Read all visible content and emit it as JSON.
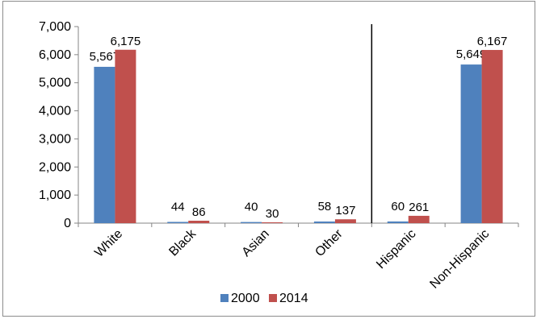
{
  "chart_data": {
    "type": "bar",
    "title": "",
    "xlabel": "",
    "ylabel": "",
    "categories": [
      "White",
      "Black",
      "Asian",
      "Other",
      "Hispanic",
      "Non-Hispanic"
    ],
    "series": [
      {
        "name": "2000",
        "values": [
          5567,
          44,
          40,
          58,
          60,
          5649
        ],
        "color": "#4f81bd"
      },
      {
        "name": "2014",
        "values": [
          6175,
          86,
          30,
          137,
          261,
          6167
        ],
        "color": "#c0504d"
      }
    ],
    "data_labels": [
      [
        "5,567",
        "44",
        "40",
        "58",
        "60",
        "5,649"
      ],
      [
        "6,175",
        "86",
        "30",
        "137",
        "261",
        "6,167"
      ]
    ],
    "ylim": [
      0,
      7000
    ],
    "yticks": [
      0,
      1000,
      2000,
      3000,
      4000,
      5000,
      6000,
      7000
    ],
    "ytick_labels": [
      "0",
      "1,000",
      "2,000",
      "3,000",
      "4,000",
      "5,000",
      "6,000",
      "7,000"
    ],
    "grid": false,
    "separator_after_category": "Other",
    "legend_position": "bottom"
  }
}
